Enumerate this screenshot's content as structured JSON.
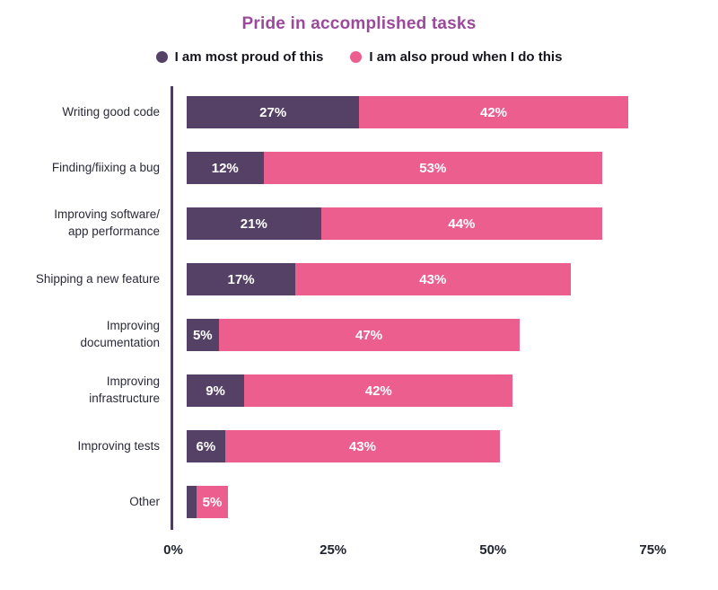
{
  "title": "Pride in accomplished tasks",
  "colors": {
    "title": "#9b4a9b",
    "series1": "#564166",
    "series2": "#ec5e8e",
    "axis": "#4d3d61"
  },
  "legend": [
    {
      "label": "I am most proud of this",
      "color_key": "series1"
    },
    {
      "label": "I am also proud when I do this",
      "color_key": "series2"
    }
  ],
  "chart_data": {
    "type": "bar",
    "orientation": "horizontal",
    "stacked": true,
    "title": "Pride in accomplished tasks",
    "categories": [
      "Writing good code",
      "Finding/fiixing a bug",
      "Improving software/\napp performance",
      "Shipping a new feature",
      "Improving\ndocumentation",
      "Improving\ninfrastructure",
      "Improving tests",
      "Other"
    ],
    "series": [
      {
        "name": "I am most proud of this",
        "values": [
          27,
          12,
          21,
          17,
          5,
          9,
          6,
          1.5
        ],
        "labels": [
          "27%",
          "12%",
          "21%",
          "17%",
          "5%",
          "9%",
          "6%",
          ""
        ]
      },
      {
        "name": "I am also proud when I do this",
        "values": [
          42,
          53,
          44,
          43,
          47,
          42,
          43,
          5
        ],
        "labels": [
          "42%",
          "53%",
          "44%",
          "43%",
          "47%",
          "42%",
          "43%",
          "5%"
        ]
      }
    ],
    "xlim": [
      0,
      80
    ],
    "x_tick_values": [
      0,
      25,
      50,
      75
    ],
    "x_ticks": [
      "0%",
      "25%",
      "50%",
      "75%"
    ],
    "grid": false,
    "legend_position": "top"
  }
}
